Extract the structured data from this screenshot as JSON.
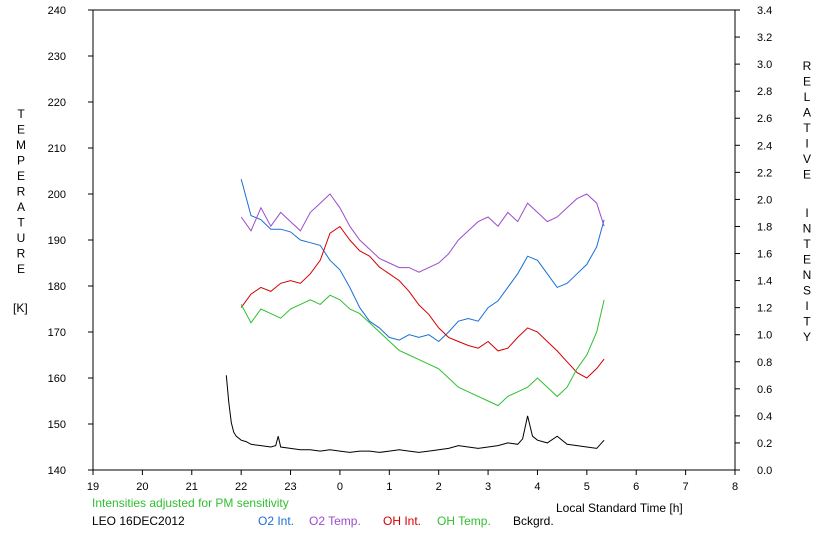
{
  "chart_data": {
    "type": "line",
    "left_axis": {
      "label_letters": [
        "T",
        "E",
        "M",
        "P",
        "E",
        "R",
        "A",
        "T",
        "U",
        "R",
        "E"
      ],
      "unit": "[K]",
      "range": [
        140,
        240
      ],
      "ticks": [
        "240",
        "230",
        "220",
        "210",
        "200",
        "190",
        "180",
        "170",
        "160",
        "150",
        "140"
      ]
    },
    "right_axis": {
      "label_word1": [
        "R",
        "E",
        "L",
        "A",
        "T",
        "I",
        "V",
        "E"
      ],
      "label_word2": [
        "I",
        "N",
        "T",
        "E",
        "N",
        "S",
        "I",
        "T",
        "Y"
      ],
      "range": [
        0.0,
        3.4
      ],
      "ticks": [
        "3.4",
        "3.2",
        "3.0",
        "2.8",
        "2.6",
        "2.4",
        "2.2",
        "2.0",
        "1.8",
        "1.6",
        "1.4",
        "1.2",
        "1.0",
        "0.8",
        "0.6",
        "0.4",
        "0.2",
        "0.0"
      ]
    },
    "x_axis": {
      "label": "Local Standard Time [h]",
      "range": [
        19,
        32
      ],
      "ticks": [
        "19",
        "20",
        "21",
        "22",
        "23",
        "0",
        "1",
        "2",
        "3",
        "4",
        "5",
        "6",
        "7",
        "8"
      ]
    },
    "note": "Intensities adjusted for PM sensitivity",
    "caption": "LEO 16DEC2012",
    "series": [
      {
        "name": "O2 Int.",
        "color": "#1a6fd6",
        "axis": "right",
        "x": [
          22.0,
          22.2,
          22.4,
          22.6,
          22.8,
          23.0,
          23.2,
          23.4,
          23.6,
          23.8,
          24.0,
          24.2,
          24.4,
          24.6,
          24.8,
          25.0,
          25.2,
          25.4,
          25.6,
          25.8,
          26.0,
          26.2,
          26.4,
          26.6,
          26.8,
          27.0,
          27.2,
          27.4,
          27.6,
          27.8,
          28.0,
          28.2,
          28.4,
          28.6,
          28.8,
          29.0,
          29.2,
          29.35
        ],
        "y": [
          2.15,
          1.88,
          1.85,
          1.78,
          1.78,
          1.76,
          1.7,
          1.68,
          1.66,
          1.55,
          1.48,
          1.35,
          1.2,
          1.1,
          1.05,
          0.98,
          0.96,
          1.0,
          0.98,
          1.0,
          0.95,
          1.02,
          1.1,
          1.12,
          1.1,
          1.2,
          1.25,
          1.35,
          1.45,
          1.58,
          1.55,
          1.45,
          1.35,
          1.38,
          1.45,
          1.52,
          1.65,
          1.85
        ]
      },
      {
        "name": "O2 Temp.",
        "color": "#9b4dca",
        "axis": "left",
        "x": [
          22.0,
          22.2,
          22.4,
          22.6,
          22.8,
          23.0,
          23.2,
          23.4,
          23.6,
          23.8,
          24.0,
          24.2,
          24.4,
          24.6,
          24.8,
          25.0,
          25.2,
          25.4,
          25.6,
          25.8,
          26.0,
          26.2,
          26.4,
          26.6,
          26.8,
          27.0,
          27.2,
          27.4,
          27.6,
          27.8,
          28.0,
          28.2,
          28.4,
          28.6,
          28.8,
          29.0,
          29.2,
          29.35
        ],
        "y": [
          195,
          192,
          197,
          193,
          196,
          194,
          192,
          196,
          198,
          200,
          197,
          193,
          190,
          188,
          186,
          185,
          184,
          184,
          183,
          184,
          185,
          187,
          190,
          192,
          194,
          195,
          193,
          196,
          194,
          198,
          196,
          194,
          195,
          197,
          199,
          200,
          198,
          193
        ]
      },
      {
        "name": "OH Int.",
        "color": "#d40000",
        "axis": "right",
        "x": [
          22.0,
          22.2,
          22.4,
          22.6,
          22.8,
          23.0,
          23.2,
          23.4,
          23.6,
          23.8,
          24.0,
          24.2,
          24.4,
          24.6,
          24.8,
          25.0,
          25.2,
          25.4,
          25.6,
          25.8,
          26.0,
          26.2,
          26.4,
          26.6,
          26.8,
          27.0,
          27.2,
          27.4,
          27.6,
          27.8,
          28.0,
          28.2,
          28.4,
          28.6,
          28.8,
          29.0,
          29.2,
          29.35
        ],
        "y": [
          1.2,
          1.3,
          1.35,
          1.32,
          1.38,
          1.4,
          1.38,
          1.45,
          1.55,
          1.75,
          1.8,
          1.7,
          1.62,
          1.58,
          1.5,
          1.45,
          1.4,
          1.32,
          1.22,
          1.15,
          1.05,
          0.98,
          0.95,
          0.92,
          0.9,
          0.95,
          0.88,
          0.9,
          0.98,
          1.05,
          1.02,
          0.95,
          0.88,
          0.8,
          0.72,
          0.68,
          0.75,
          0.82
        ]
      },
      {
        "name": "OH Temp.",
        "color": "#2fbf2f",
        "axis": "left",
        "x": [
          22.0,
          22.2,
          22.4,
          22.6,
          22.8,
          23.0,
          23.2,
          23.4,
          23.6,
          23.8,
          24.0,
          24.2,
          24.4,
          24.6,
          24.8,
          25.0,
          25.2,
          25.4,
          25.6,
          25.8,
          26.0,
          26.2,
          26.4,
          26.6,
          26.8,
          27.0,
          27.2,
          27.4,
          27.6,
          27.8,
          28.0,
          28.2,
          28.4,
          28.6,
          28.8,
          29.0,
          29.2,
          29.35
        ],
        "y": [
          176,
          172,
          175,
          174,
          173,
          175,
          176,
          177,
          176,
          178,
          177,
          175,
          174,
          172,
          170,
          168,
          166,
          165,
          164,
          163,
          162,
          160,
          158,
          157,
          156,
          155,
          154,
          156,
          157,
          158,
          160,
          158,
          156,
          158,
          162,
          165,
          170,
          177
        ]
      },
      {
        "name": "Bckgrd.",
        "color": "#000000",
        "axis": "right",
        "x": [
          21.7,
          21.75,
          21.8,
          21.85,
          21.9,
          22.0,
          22.1,
          22.2,
          22.4,
          22.6,
          22.7,
          22.75,
          22.8,
          23.0,
          23.2,
          23.4,
          23.6,
          23.8,
          24.0,
          24.2,
          24.4,
          24.6,
          24.8,
          25.0,
          25.2,
          25.4,
          25.6,
          25.8,
          26.0,
          26.2,
          26.4,
          26.6,
          26.8,
          27.0,
          27.2,
          27.4,
          27.6,
          27.7,
          27.8,
          27.9,
          28.0,
          28.2,
          28.4,
          28.6,
          28.8,
          29.0,
          29.2,
          29.35
        ],
        "y": [
          0.7,
          0.5,
          0.35,
          0.28,
          0.25,
          0.22,
          0.21,
          0.19,
          0.18,
          0.17,
          0.18,
          0.25,
          0.17,
          0.16,
          0.15,
          0.15,
          0.14,
          0.15,
          0.14,
          0.13,
          0.14,
          0.14,
          0.13,
          0.14,
          0.15,
          0.14,
          0.13,
          0.14,
          0.15,
          0.16,
          0.18,
          0.17,
          0.16,
          0.17,
          0.18,
          0.2,
          0.19,
          0.23,
          0.4,
          0.25,
          0.22,
          0.2,
          0.25,
          0.19,
          0.18,
          0.17,
          0.16,
          0.22
        ]
      }
    ]
  }
}
